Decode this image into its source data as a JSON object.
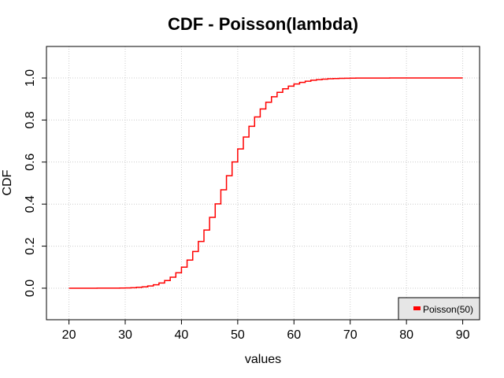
{
  "chart_data": {
    "type": "line",
    "title": "CDF - Poisson(lambda)",
    "xlabel": "values",
    "ylabel": "CDF",
    "xlim": [
      16,
      93
    ],
    "ylim": [
      -0.15,
      1.15
    ],
    "x_ticks": [
      20,
      30,
      40,
      50,
      60,
      70,
      80,
      90
    ],
    "x_tick_labels": [
      "20",
      "30",
      "40",
      "50",
      "60",
      "70",
      "80",
      "90"
    ],
    "y_ticks": [
      0.0,
      0.2,
      0.4,
      0.6,
      0.8,
      1.0
    ],
    "y_tick_labels": [
      "0.0",
      "0.2",
      "0.4",
      "0.6",
      "0.8",
      "1.0"
    ],
    "grid": true,
    "legend_position": "bottom-right",
    "series": [
      {
        "name": "Poisson(50)",
        "color": "#ff0000",
        "step": true,
        "x": [
          20,
          21,
          22,
          23,
          24,
          25,
          26,
          27,
          28,
          29,
          30,
          31,
          32,
          33,
          34,
          35,
          36,
          37,
          38,
          39,
          40,
          41,
          42,
          43,
          44,
          45,
          46,
          47,
          48,
          49,
          50,
          51,
          52,
          53,
          54,
          55,
          56,
          57,
          58,
          59,
          60,
          61,
          62,
          63,
          64,
          65,
          66,
          67,
          68,
          69,
          70,
          71,
          72,
          73,
          74,
          75,
          76,
          77,
          78,
          79,
          80,
          81,
          82,
          83,
          84,
          85,
          86,
          87,
          88,
          89,
          90
        ],
        "values": [
          0.0,
          0.0,
          0.0,
          0.0,
          0.0,
          0.0001,
          0.0001,
          0.0002,
          0.0004,
          0.0007,
          0.0014,
          0.0024,
          0.004,
          0.0066,
          0.0105,
          0.0164,
          0.0248,
          0.0365,
          0.0524,
          0.0734,
          0.1001,
          0.1336,
          0.1743,
          0.2221,
          0.2768,
          0.3369,
          0.4013,
          0.4683,
          0.5353,
          0.6007,
          0.6625,
          0.7192,
          0.7701,
          0.8147,
          0.8527,
          0.8846,
          0.9107,
          0.9317,
          0.9484,
          0.9615,
          0.9716,
          0.9792,
          0.9849,
          0.9892,
          0.9923,
          0.9946,
          0.9963,
          0.9974,
          0.9982,
          0.9988,
          0.9992,
          0.9995,
          0.9997,
          0.9998,
          0.9999,
          0.9999,
          0.9999,
          1.0,
          1.0,
          1.0,
          1.0,
          1.0,
          1.0,
          1.0,
          1.0,
          1.0,
          1.0,
          1.0,
          1.0,
          1.0,
          1.0
        ]
      }
    ]
  }
}
